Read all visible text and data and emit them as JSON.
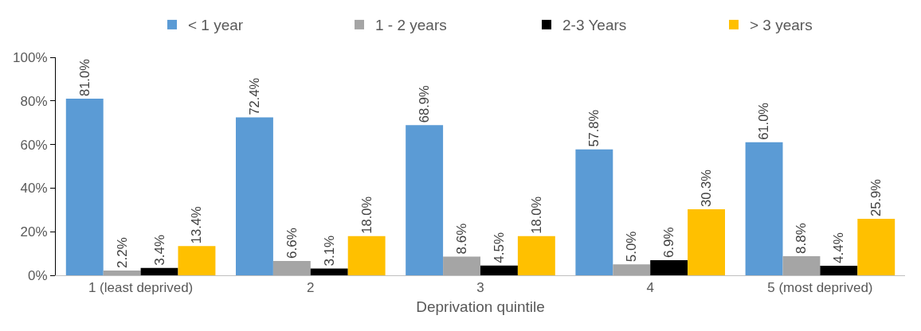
{
  "chart_data": {
    "type": "bar",
    "xlabel": "Deprivation quintile",
    "categories": [
      "1 (least deprived)",
      "2",
      "3",
      "4",
      "5 (most deprived)"
    ],
    "series": [
      {
        "name": "< 1 year",
        "color": "#5b9bd5",
        "values": [
          81.0,
          72.4,
          68.9,
          57.8,
          61.0
        ]
      },
      {
        "name": "1 - 2 years",
        "color": "#a5a5a5",
        "values": [
          2.2,
          6.6,
          8.6,
          5.0,
          8.8
        ]
      },
      {
        "name": "2-3 Years",
        "color": "#000000",
        "values": [
          3.4,
          3.1,
          4.5,
          6.9,
          4.4
        ]
      },
      {
        "name": "> 3 years",
        "color": "#ffc000",
        "values": [
          13.4,
          18.0,
          18.0,
          30.3,
          25.9
        ]
      }
    ],
    "value_labels": [
      [
        "81.0%",
        "72.4%",
        "68.9%",
        "57.8%",
        "61.0%"
      ],
      [
        "2.2%",
        "6.6%",
        "8.6%",
        "5.0%",
        "8.8%"
      ],
      [
        "3.4%",
        "3.1%",
        "4.5%",
        "6.9%",
        "4.4%"
      ],
      [
        "13.4%",
        "18.0%",
        "18.0%",
        "30.3%",
        "25.9%"
      ]
    ],
    "ylim": [
      0,
      100
    ],
    "yticks": [
      {
        "value": 0,
        "label": "0%"
      },
      {
        "value": 20,
        "label": "20%"
      },
      {
        "value": 40,
        "label": "40%"
      },
      {
        "value": 60,
        "label": "60%"
      },
      {
        "value": 80,
        "label": "80%"
      },
      {
        "value": 100,
        "label": "100%"
      }
    ],
    "grid": false,
    "legend": "top right"
  }
}
